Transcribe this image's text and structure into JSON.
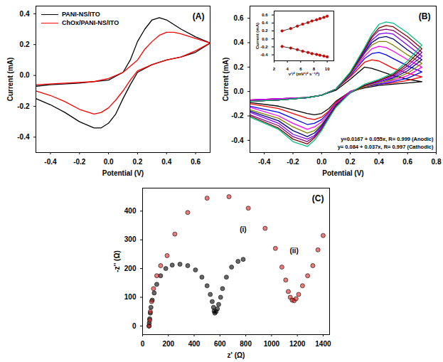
{
  "chart_data": [
    {
      "type": "line",
      "title": "(A)",
      "xlabel": "Potential (V)",
      "ylabel": "Current (mA)",
      "xlim": [
        -0.5,
        0.7
      ],
      "ylim": [
        -0.5,
        0.45
      ],
      "xticks": [
        -0.4,
        -0.2,
        {
          "value": 0,
          "label": "0.0"
        },
        0.2,
        0.4,
        0.6
      ],
      "yticks": [
        -0.4,
        -0.2,
        {
          "value": 0,
          "label": "0.0"
        },
        0.2,
        0.4
      ],
      "legend": "top-left",
      "series": [
        {
          "name": "PANI-NS/ITO",
          "color": "#000000",
          "x": [
            -0.5,
            -0.4,
            -0.2,
            0.0,
            0.1,
            0.15,
            0.2,
            0.25,
            0.3,
            0.35,
            0.4,
            0.5,
            0.6,
            0.7,
            0.6,
            0.5,
            0.4,
            0.3,
            0.2,
            0.15,
            0.1,
            0.05,
            0.0,
            -0.05,
            -0.1,
            -0.2,
            -0.3,
            -0.4,
            -0.5
          ],
          "values": [
            -0.07,
            -0.06,
            -0.05,
            -0.03,
            0.02,
            0.1,
            0.22,
            0.3,
            0.36,
            0.375,
            0.36,
            0.3,
            0.25,
            0.21,
            0.15,
            0.12,
            0.1,
            0.07,
            0.02,
            -0.06,
            -0.15,
            -0.25,
            -0.31,
            -0.34,
            -0.34,
            -0.3,
            -0.24,
            -0.19,
            -0.15
          ]
        },
        {
          "name": "ChOx/PANI-NS/ITO",
          "color": "#ff0000",
          "x": [
            -0.5,
            -0.3,
            -0.1,
            0.0,
            0.1,
            0.2,
            0.25,
            0.3,
            0.35,
            0.4,
            0.45,
            0.5,
            0.6,
            0.7,
            0.6,
            0.5,
            0.4,
            0.3,
            0.2,
            0.15,
            0.1,
            0.05,
            0.0,
            -0.05,
            -0.1,
            -0.2,
            -0.3,
            -0.4,
            -0.5
          ],
          "values": [
            -0.06,
            -0.05,
            -0.04,
            -0.02,
            0.02,
            0.1,
            0.17,
            0.22,
            0.26,
            0.28,
            0.28,
            0.27,
            0.24,
            0.21,
            0.16,
            0.12,
            0.1,
            0.07,
            0.03,
            -0.03,
            -0.1,
            -0.16,
            -0.21,
            -0.24,
            -0.25,
            -0.22,
            -0.17,
            -0.13,
            -0.1
          ]
        }
      ]
    },
    {
      "type": "line",
      "title": "(B)",
      "xlabel": "Potential (V)",
      "ylabel": "Current (mA)",
      "xlim": [
        -0.5,
        0.8
      ],
      "ylim": [
        -0.5,
        0.7
      ],
      "xticks": [
        -0.4,
        -0.2,
        {
          "value": 0,
          "label": "0.0"
        },
        0.2,
        0.4,
        0.6,
        0.8
      ],
      "yticks": [
        -0.4,
        -0.2,
        {
          "value": 0,
          "label": "0.0"
        },
        0.2,
        0.4,
        0.6
      ],
      "x": [
        -0.5,
        -0.3,
        -0.1,
        0.0,
        0.1,
        0.2,
        0.3,
        0.35,
        0.4,
        0.45,
        0.5,
        0.6,
        0.7,
        0.7,
        0.6,
        0.5,
        0.4,
        0.3,
        0.2,
        0.1,
        0.05,
        0.0,
        -0.05,
        -0.1,
        -0.2,
        -0.3,
        -0.5
      ],
      "series": [
        {
          "color": "#000000",
          "values": [
            -0.07,
            -0.06,
            -0.05,
            -0.03,
            0.01,
            0.1,
            0.2,
            0.19,
            0.17,
            0.15,
            0.13,
            0.1,
            0.08,
            0.08,
            0.07,
            0.06,
            0.05,
            0.03,
            0.0,
            -0.08,
            -0.14,
            -0.18,
            -0.19,
            -0.18,
            -0.15,
            -0.12,
            -0.09
          ]
        },
        {
          "color": "#ff0000",
          "values": [
            -0.07,
            -0.06,
            -0.05,
            -0.03,
            0.02,
            0.12,
            0.24,
            0.26,
            0.25,
            0.22,
            0.19,
            0.15,
            0.12,
            0.12,
            0.09,
            0.07,
            0.06,
            0.04,
            0.0,
            -0.09,
            -0.16,
            -0.21,
            -0.23,
            -0.22,
            -0.18,
            -0.14,
            -0.1
          ]
        },
        {
          "color": "#0000ff",
          "values": [
            -0.07,
            -0.06,
            -0.05,
            -0.03,
            0.02,
            0.13,
            0.27,
            0.31,
            0.32,
            0.3,
            0.27,
            0.21,
            0.16,
            0.16,
            0.11,
            0.08,
            0.06,
            0.04,
            0.0,
            -0.1,
            -0.17,
            -0.23,
            -0.26,
            -0.27,
            -0.22,
            -0.17,
            -0.12
          ]
        },
        {
          "color": "#ff00ff",
          "values": [
            -0.07,
            -0.06,
            -0.05,
            -0.03,
            0.02,
            0.14,
            0.29,
            0.35,
            0.37,
            0.36,
            0.33,
            0.26,
            0.2,
            0.2,
            0.13,
            0.09,
            0.07,
            0.04,
            0.0,
            -0.1,
            -0.18,
            -0.25,
            -0.29,
            -0.31,
            -0.26,
            -0.2,
            -0.13
          ]
        },
        {
          "color": "#808000",
          "values": [
            -0.08,
            -0.07,
            -0.05,
            -0.03,
            0.02,
            0.14,
            0.31,
            0.38,
            0.41,
            0.41,
            0.38,
            0.3,
            0.23,
            0.23,
            0.15,
            0.1,
            0.07,
            0.04,
            -0.01,
            -0.11,
            -0.19,
            -0.27,
            -0.32,
            -0.34,
            -0.29,
            -0.22,
            -0.15
          ]
        },
        {
          "color": "#000080",
          "values": [
            -0.08,
            -0.07,
            -0.05,
            -0.03,
            0.02,
            0.15,
            0.32,
            0.4,
            0.44,
            0.45,
            0.43,
            0.34,
            0.26,
            0.26,
            0.17,
            0.11,
            0.08,
            0.05,
            -0.01,
            -0.11,
            -0.2,
            -0.28,
            -0.34,
            -0.37,
            -0.32,
            -0.24,
            -0.16
          ]
        },
        {
          "color": "#8000ff",
          "values": [
            -0.08,
            -0.07,
            -0.05,
            -0.03,
            0.02,
            0.15,
            0.33,
            0.42,
            0.47,
            0.48,
            0.47,
            0.38,
            0.29,
            0.29,
            0.19,
            0.12,
            0.08,
            0.05,
            -0.01,
            -0.12,
            -0.21,
            -0.29,
            -0.36,
            -0.39,
            -0.35,
            -0.26,
            -0.17
          ]
        },
        {
          "color": "#800080",
          "values": [
            -0.08,
            -0.07,
            -0.05,
            -0.03,
            0.02,
            0.15,
            0.34,
            0.44,
            0.5,
            0.51,
            0.5,
            0.42,
            0.32,
            0.32,
            0.21,
            0.13,
            0.09,
            0.05,
            -0.01,
            -0.12,
            -0.21,
            -0.3,
            -0.37,
            -0.41,
            -0.37,
            -0.28,
            -0.19
          ]
        },
        {
          "color": "#800000",
          "values": [
            -0.08,
            -0.07,
            -0.05,
            -0.03,
            0.02,
            0.15,
            0.35,
            0.45,
            0.52,
            0.54,
            0.53,
            0.45,
            0.35,
            0.35,
            0.23,
            0.14,
            0.09,
            0.05,
            -0.01,
            -0.12,
            -0.22,
            -0.31,
            -0.38,
            -0.43,
            -0.39,
            -0.3,
            -0.2
          ]
        },
        {
          "color": "#00c080",
          "values": [
            -0.08,
            -0.07,
            -0.05,
            -0.03,
            0.02,
            0.16,
            0.36,
            0.47,
            0.55,
            0.57,
            0.56,
            0.48,
            0.38,
            0.38,
            0.25,
            0.15,
            0.1,
            0.06,
            -0.01,
            -0.13,
            -0.22,
            -0.32,
            -0.4,
            -0.45,
            -0.41,
            -0.31,
            -0.21
          ]
        }
      ],
      "annotations": [
        "y=0.0167 + 0.055x, R= 0.999 (Anodic)",
        "y= 0.084 + 0.037x, R= 0.997 (Cathodic)"
      ],
      "inset": {
        "type": "line",
        "xlabel": "ν¹/² (mV¹/² s⁻¹/²)",
        "ylabel": "Current (mA)",
        "xlim": [
          2,
          11
        ],
        "ylim": [
          -0.55,
          0.7
        ],
        "xticks": [
          2,
          4,
          6,
          8,
          10
        ],
        "yticks": [
          -0.4,
          -0.2,
          {
            "value": 0,
            "label": "0.0"
          },
          0.2,
          0.4,
          0.6
        ],
        "x": [
          3.2,
          4.5,
          5.5,
          6.3,
          7.1,
          7.7,
          8.4,
          8.9,
          9.5,
          10
        ],
        "series": [
          {
            "color": "#cc0000",
            "marker": "circle",
            "values": [
              0.2,
              0.26,
              0.32,
              0.37,
              0.41,
              0.45,
              0.48,
              0.51,
              0.54,
              0.57
            ]
          },
          {
            "color": "#cc0000",
            "marker": "circle",
            "values": [
              -0.19,
              -0.23,
              -0.27,
              -0.31,
              -0.34,
              -0.37,
              -0.39,
              -0.41,
              -0.43,
              -0.45
            ]
          }
        ]
      }
    },
    {
      "type": "scatter",
      "title": "(C)",
      "xlabel": "z' (Ω)",
      "ylabel": "-z'' (Ω)",
      "xlim": [
        0,
        1450
      ],
      "ylim": [
        -30,
        480
      ],
      "xticks": [
        0,
        200,
        400,
        600,
        800,
        1000,
        1200,
        1400
      ],
      "yticks": [
        0,
        100,
        200,
        300,
        400
      ],
      "series": [
        {
          "name": "(i)",
          "color": "#000000",
          "marker": "circle",
          "x": [
            50,
            52,
            55,
            60,
            65,
            75,
            90,
            110,
            140,
            180,
            230,
            290,
            350,
            410,
            460,
            500,
            525,
            540,
            550,
            555,
            560,
            570,
            580,
            590,
            605,
            620,
            650,
            690,
            740,
            780
          ],
          "values": [
            0,
            10,
            25,
            45,
            65,
            90,
            115,
            145,
            175,
            200,
            212,
            215,
            210,
            195,
            170,
            140,
            110,
            85,
            65,
            52,
            45,
            50,
            60,
            75,
            100,
            130,
            170,
            205,
            225,
            232
          ]
        },
        {
          "name": "(ii)",
          "color": "#e32020",
          "marker": "circle",
          "x": [
            50,
            55,
            60,
            70,
            85,
            110,
            140,
            190,
            250,
            350,
            500,
            670,
            820,
            950,
            1030,
            1080,
            1110,
            1130,
            1145,
            1160,
            1175,
            1190,
            1210,
            1240,
            1280,
            1320,
            1360,
            1400
          ],
          "values": [
            0,
            20,
            50,
            85,
            130,
            175,
            210,
            245,
            320,
            395,
            445,
            450,
            410,
            340,
            270,
            205,
            160,
            120,
            100,
            90,
            88,
            95,
            110,
            140,
            175,
            210,
            265,
            315
          ]
        }
      ]
    }
  ]
}
